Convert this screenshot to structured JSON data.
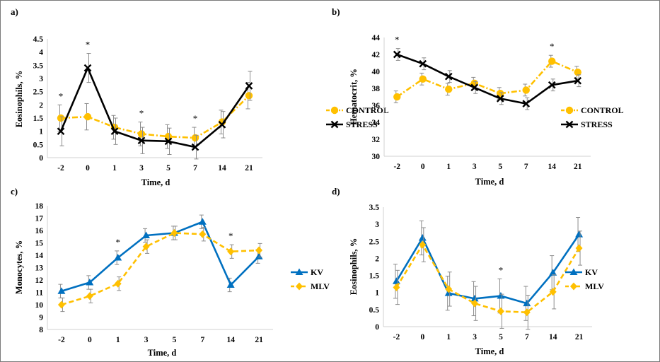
{
  "chart_data": [
    {
      "type": "line",
      "panel_label": "a)",
      "ylabel": "Eosinophils, %",
      "xlabel": "Time, d",
      "categories": [
        "-2",
        "0",
        "1",
        "3",
        "5",
        "7",
        "14",
        "21"
      ],
      "ylim": [
        0,
        4.5
      ],
      "yticks": [
        "0",
        "0.5",
        "1",
        "1.5",
        "2",
        "2.5",
        "3",
        "3.5",
        "4",
        "4.5"
      ],
      "legend_position": "right",
      "annotations": [
        "*",
        "*",
        "*",
        "*"
      ],
      "annotation_categories": [
        "-2",
        "0",
        "3",
        "7"
      ],
      "series": [
        {
          "name": "CONTROL",
          "color": "#FFC000",
          "marker": "circle",
          "style": "dash-dot",
          "values": [
            1.5,
            1.55,
            1.15,
            0.9,
            0.8,
            0.75,
            1.35,
            2.35
          ],
          "errors": [
            0.5,
            0.5,
            0.45,
            0.45,
            0.45,
            0.4,
            0.45,
            0.5
          ]
        },
        {
          "name": "STRESS",
          "color": "#000000",
          "marker": "x",
          "style": "solid",
          "values": [
            1.0,
            3.4,
            1.0,
            0.65,
            0.62,
            0.4,
            1.25,
            2.72
          ],
          "errors": [
            0.55,
            0.55,
            0.5,
            0.5,
            0.5,
            0.45,
            0.5,
            0.55
          ]
        }
      ]
    },
    {
      "type": "line",
      "panel_label": "b)",
      "ylabel": "Hematocrit, %",
      "xlabel": "Time, d",
      "categories": [
        "-2",
        "0",
        "1",
        "3",
        "5",
        "7",
        "14",
        "21"
      ],
      "ylim": [
        30,
        44
      ],
      "yticks": [
        "30",
        "32",
        "34",
        "36",
        "38",
        "40",
        "42",
        "44"
      ],
      "legend_position": "right",
      "annotations": [
        "*",
        "*"
      ],
      "annotation_categories": [
        "-2",
        "14"
      ],
      "series": [
        {
          "name": "CONTROL",
          "color": "#FFC000",
          "marker": "circle",
          "style": "dash-dot",
          "values": [
            37.0,
            39.1,
            37.9,
            38.6,
            37.4,
            37.8,
            41.2,
            39.9
          ],
          "errors": [
            0.7,
            0.7,
            0.7,
            0.7,
            0.7,
            0.7,
            0.7,
            0.7
          ]
        },
        {
          "name": "STRESS",
          "color": "#000000",
          "marker": "x",
          "style": "solid",
          "values": [
            42.0,
            40.9,
            39.4,
            38.1,
            36.8,
            36.2,
            38.4,
            38.9
          ],
          "errors": [
            0.7,
            0.7,
            0.7,
            0.7,
            0.7,
            0.7,
            0.7,
            0.7
          ]
        }
      ]
    },
    {
      "type": "line",
      "panel_label": "c)",
      "ylabel": "Monocytes, %",
      "xlabel": "Time, d",
      "categories": [
        "-2",
        "0",
        "1",
        "3",
        "5",
        "7",
        "14",
        "21"
      ],
      "ylim": [
        8,
        18
      ],
      "yticks": [
        "8",
        "9",
        "10",
        "11",
        "12",
        "13",
        "14",
        "15",
        "16",
        "17",
        "18"
      ],
      "legend_position": "right",
      "annotations": [
        "*",
        "*"
      ],
      "annotation_categories": [
        "1",
        "14"
      ],
      "series": [
        {
          "name": "KV",
          "color": "#0070C0",
          "marker": "triangle",
          "style": "solid",
          "values": [
            11.1,
            11.8,
            13.8,
            15.6,
            15.8,
            16.7,
            11.6,
            13.9
          ],
          "errors": [
            0.55,
            0.55,
            0.55,
            0.55,
            0.55,
            0.55,
            0.55,
            0.55
          ]
        },
        {
          "name": "MLV",
          "color": "#FFC000",
          "marker": "diamond",
          "style": "dashed",
          "values": [
            10.0,
            10.7,
            11.7,
            14.7,
            15.8,
            15.7,
            14.3,
            14.4
          ],
          "errors": [
            0.55,
            0.55,
            0.55,
            0.55,
            0.55,
            0.55,
            0.55,
            0.55
          ]
        }
      ]
    },
    {
      "type": "line",
      "panel_label": "d)",
      "ylabel": "Eosinophils, %",
      "xlabel": "Time, d",
      "categories": [
        "-2",
        "0",
        "1",
        "3",
        "5",
        "7",
        "14",
        "21"
      ],
      "ylim": [
        0,
        3.5
      ],
      "yticks": [
        "0",
        "0.5",
        "1",
        "1.5",
        "2",
        "2.5",
        "3",
        "3.5"
      ],
      "legend_position": "right",
      "annotations": [
        "*"
      ],
      "annotation_categories": [
        "5"
      ],
      "series": [
        {
          "name": "KV",
          "color": "#0070C0",
          "marker": "triangle",
          "style": "solid",
          "values": [
            1.33,
            2.6,
            0.98,
            0.82,
            0.9,
            0.68,
            1.58,
            2.7
          ],
          "errors": [
            0.5,
            0.5,
            0.5,
            0.5,
            0.5,
            0.5,
            0.5,
            0.5
          ]
        },
        {
          "name": "MLV",
          "color": "#FFC000",
          "marker": "diamond",
          "style": "dashed",
          "values": [
            1.15,
            2.4,
            1.1,
            0.68,
            0.45,
            0.42,
            1.02,
            2.3
          ],
          "errors": [
            0.5,
            0.5,
            0.5,
            0.5,
            0.5,
            0.5,
            0.5,
            0.5
          ]
        }
      ]
    }
  ]
}
